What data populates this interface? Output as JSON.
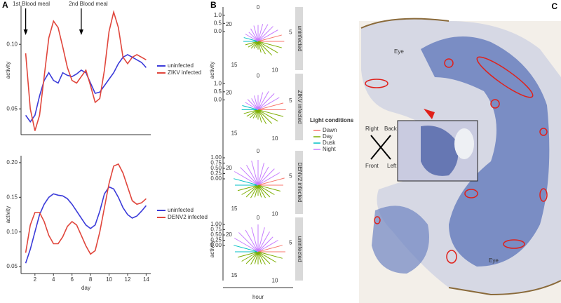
{
  "chart_data": [
    {
      "type": "line",
      "panel": "A",
      "y_label": "activity",
      "annotations": [
        {
          "text": "1st Blood meal",
          "x": 1
        },
        {
          "text": "2nd Blood meal",
          "x": 7
        }
      ],
      "x": [
        1,
        1.5,
        2,
        2.5,
        3,
        3.5,
        4,
        4.5,
        5,
        5.5,
        6,
        6.5,
        7,
        7.5,
        8,
        8.5,
        9,
        9.5,
        10,
        10.5,
        11,
        11.5,
        12,
        12.5,
        13,
        13.5,
        14
      ],
      "xlim": [
        0.5,
        14.5
      ],
      "ylim": [
        0.03,
        0.13
      ],
      "yticks": [
        0.05,
        {
          "value": 0.1,
          "label": "0.10"
        }
      ],
      "series": [
        {
          "name": "uninfected",
          "color": "#3b3bd9",
          "values": [
            0.045,
            0.04,
            0.045,
            0.06,
            0.072,
            0.078,
            0.072,
            0.07,
            0.078,
            0.076,
            0.075,
            0.077,
            0.08,
            0.078,
            0.07,
            0.062,
            0.063,
            0.068,
            0.073,
            0.078,
            0.085,
            0.09,
            0.092,
            0.09,
            0.088,
            0.086,
            0.082
          ]
        },
        {
          "name": "ZIKV infected",
          "color": "#e0463c",
          "values": [
            0.093,
            0.05,
            0.033,
            0.045,
            0.075,
            0.105,
            0.118,
            0.113,
            0.098,
            0.082,
            0.072,
            0.07,
            0.075,
            0.08,
            0.068,
            0.055,
            0.058,
            0.08,
            0.11,
            0.125,
            0.113,
            0.09,
            0.085,
            0.09,
            0.092,
            0.09,
            0.088
          ]
        }
      ]
    },
    {
      "type": "line",
      "x_label": "day",
      "y_label": "activity",
      "x": [
        1,
        1.5,
        2,
        2.5,
        3,
        3.5,
        4,
        4.5,
        5,
        5.5,
        6,
        6.5,
        7,
        7.5,
        8,
        8.5,
        9,
        9.5,
        10,
        10.5,
        11,
        11.5,
        12,
        12.5,
        13,
        13.5,
        14
      ],
      "xlim": [
        0.5,
        14.5
      ],
      "xticks": [
        2,
        4,
        6,
        8,
        10,
        12,
        14
      ],
      "ylim": [
        0.04,
        0.21
      ],
      "yticks": [
        0.05,
        {
          "value": 0.1,
          "label": "0.10"
        },
        0.15,
        {
          "value": 0.2,
          "label": "0.20"
        }
      ],
      "series": [
        {
          "name": "uninfected",
          "color": "#3b3bd9",
          "values": [
            0.055,
            0.075,
            0.1,
            0.125,
            0.14,
            0.15,
            0.155,
            0.153,
            0.152,
            0.148,
            0.14,
            0.13,
            0.12,
            0.11,
            0.105,
            0.11,
            0.13,
            0.155,
            0.165,
            0.162,
            0.15,
            0.135,
            0.125,
            0.12,
            0.123,
            0.13,
            0.138
          ]
        },
        {
          "name": "DENV2 infected",
          "color": "#e0463c",
          "values": [
            0.07,
            0.11,
            0.128,
            0.128,
            0.115,
            0.095,
            0.083,
            0.083,
            0.093,
            0.108,
            0.115,
            0.11,
            0.095,
            0.08,
            0.068,
            0.073,
            0.1,
            0.135,
            0.17,
            0.195,
            0.198,
            0.185,
            0.165,
            0.145,
            0.14,
            0.142,
            0.148
          ]
        }
      ]
    },
    {
      "type": "polar",
      "panel": "B",
      "y_label": "activity",
      "x_label": "hour",
      "legend_title": "Light conditions",
      "conditions": [
        {
          "name": "Dawn",
          "color": "#f8766d"
        },
        {
          "name": "Day",
          "color": "#7cae00"
        },
        {
          "name": "Dusk",
          "color": "#00bfc4"
        },
        {
          "name": "Night",
          "color": "#c77cff"
        }
      ],
      "hours": [
        0,
        1,
        2,
        3,
        4,
        5,
        6,
        7,
        8,
        9,
        10,
        11,
        12,
        13,
        14,
        15,
        16,
        17,
        18,
        19,
        20,
        21,
        22,
        23
      ],
      "hour_conditions": [
        "Night",
        "Night",
        "Night",
        "Night",
        "Night",
        "Dawn",
        "Dawn",
        "Day",
        "Day",
        "Day",
        "Day",
        "Day",
        "Day",
        "Day",
        "Day",
        "Day",
        "Day",
        "Day",
        "Dusk",
        "Dusk",
        "Night",
        "Night",
        "Night",
        "Night"
      ],
      "xticks": [
        0,
        5,
        10,
        15,
        20
      ],
      "facets": [
        {
          "name": "uninfected",
          "rlim": [
            -0.6,
            1.2
          ],
          "rticks": [
            {
              "value": 0,
              "label": "0.0"
            },
            0.5,
            {
              "value": 1,
              "label": "1.0"
            }
          ],
          "values": [
            0.4,
            0.5,
            0.6,
            0.7,
            0.8,
            0.9,
            1.0,
            0.9,
            0.8,
            0.6,
            0.3,
            0.1,
            -0.1,
            -0.2,
            -0.1,
            0.0,
            0.1,
            0.2,
            0.3,
            0.3,
            0.3,
            0.2,
            0.3,
            0.4
          ]
        },
        {
          "name": "ZIKV infected",
          "rlim": [
            -0.6,
            1.2
          ],
          "rticks": [
            {
              "value": 0,
              "label": "0.0"
            },
            0.5,
            {
              "value": 1,
              "label": "1.0"
            }
          ],
          "values": [
            0.3,
            0.5,
            0.7,
            0.8,
            0.9,
            1.0,
            1.1,
            1.0,
            0.8,
            0.6,
            0.4,
            0.2,
            0.0,
            -0.1,
            0.0,
            0.1,
            0.2,
            0.3,
            0.4,
            0.4,
            0.3,
            0.3,
            0.2,
            0.3
          ]
        },
        {
          "name": "DENV2 infected",
          "rlim": [
            -0.3,
            1.1
          ],
          "rticks": [
            {
              "value": 0,
              "label": "0.00"
            },
            0.25,
            {
              "value": 0.5,
              "label": "0.50"
            },
            0.75,
            {
              "value": 1,
              "label": "1.00"
            }
          ],
          "values": [
            0.9,
            0.8,
            0.7,
            0.8,
            0.9,
            1.0,
            0.9,
            0.8,
            0.6,
            0.5,
            0.4,
            0.3,
            0.2,
            0.3,
            0.4,
            0.5,
            0.6,
            0.7,
            0.8,
            0.9,
            1.0,
            0.9,
            0.8,
            0.9
          ]
        },
        {
          "name": "uninfected",
          "rlim": [
            -0.3,
            1.1
          ],
          "rticks": [
            {
              "value": 0,
              "label": "0.00"
            },
            0.25,
            {
              "value": 0.5,
              "label": "0.50"
            },
            0.75,
            {
              "value": 1,
              "label": "1.00"
            }
          ],
          "values": [
            1.0,
            0.9,
            0.8,
            0.7,
            0.8,
            0.9,
            1.0,
            0.9,
            0.7,
            0.5,
            0.4,
            0.3,
            0.3,
            0.3,
            0.4,
            0.5,
            0.6,
            0.7,
            0.8,
            0.9,
            1.0,
            1.0,
            0.9,
            0.9
          ]
        }
      ]
    }
  ],
  "image_panel": {
    "label": "C",
    "eye_labels": [
      "Eye",
      "Eye"
    ],
    "orientation": {
      "right": "Right",
      "back": "Back",
      "front": "Front",
      "left": "Left"
    }
  }
}
